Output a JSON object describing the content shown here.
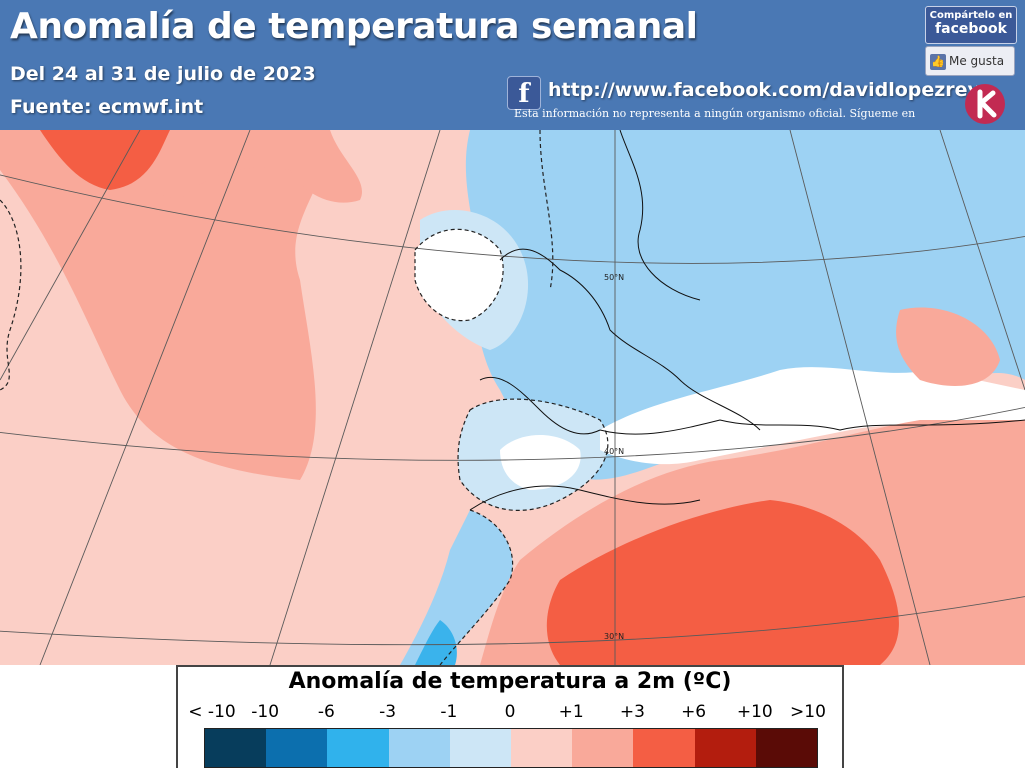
{
  "header": {
    "title": "Anomalía de temperatura semanal",
    "date_range": "Del 24 al 31 de julio de 2023",
    "source": "Fuente: ecmwf.int",
    "facebook_url": "http://www.facebook.com/davidlopezrey",
    "disclaimer": "Esta información no representa a ningún organismo oficial. Sígueme en",
    "share_line1": "Compártelo en",
    "share_line2": "facebook",
    "like_label": "Me gusta",
    "facebook_icon": "facebook-f-icon",
    "logo_icon": "author-logo-icon"
  },
  "map": {
    "lat_labels": [
      "50°N",
      "40°N",
      "30°N"
    ],
    "anomaly_colors": {
      "moderate_warm": "#f9a99a",
      "strong_warm": "#f45e44",
      "slight_warm": "#fbcfc6",
      "slight_cool": "#cde6f6",
      "moderate_cool": "#9dd2f3",
      "strong_cool": "#3ab3ec",
      "neutral": "#ffffff"
    }
  },
  "legend": {
    "title": "Anomalía de temperatura a 2m (ºC)",
    "ticks": [
      "< -10",
      "-10",
      "-6",
      "-3",
      "-1",
      "0",
      "+1",
      "+3",
      "+6",
      "+10",
      ">10"
    ],
    "colors": [
      "#073d5c",
      "#0c6fae",
      "#30b2ec",
      "#9dd2f3",
      "#cde6f6",
      "#fbcfc6",
      "#f9a99a",
      "#f45e44",
      "#b31d0e",
      "#5a0b06"
    ]
  }
}
